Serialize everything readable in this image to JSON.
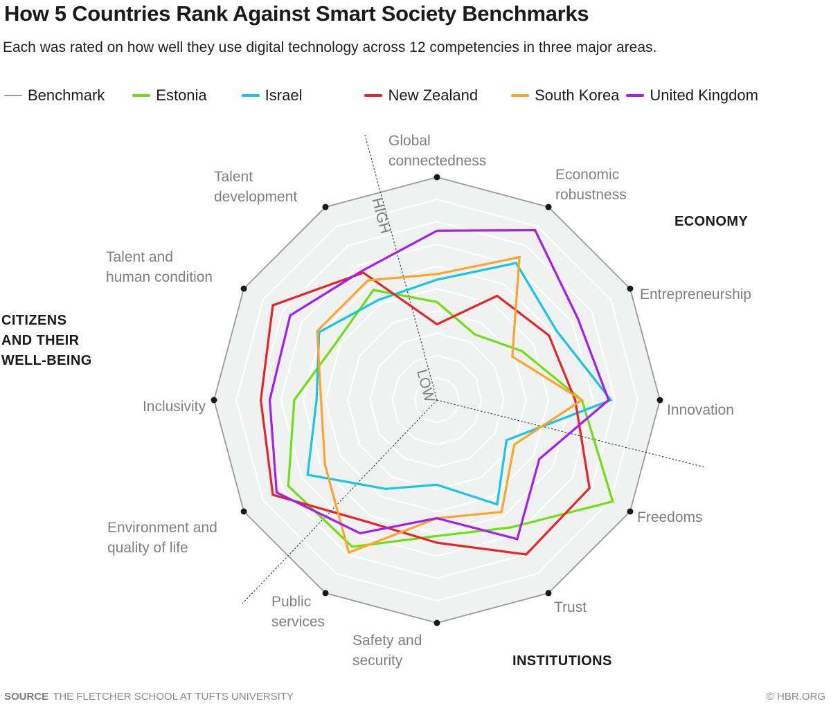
{
  "header": {
    "title": "How 5 Countries Rank Against Smart Society Benchmarks",
    "subtitle": "Each was rated on how well they use digital technology across 12 competencies in three major areas."
  },
  "footer": {
    "source_label": "SOURCE",
    "source_text": "THE FLETCHER SCHOOL AT TUFTS UNIVERSITY",
    "credit": "© HBR.ORG"
  },
  "chart_data": {
    "type": "radar",
    "title": "How 5 Countries Rank Against Smart Society Benchmarks",
    "subtitle": "Each was rated on how well they use digital technology across 12 competencies in three major areas.",
    "scale": {
      "min": 0,
      "max": 10,
      "rings": 10,
      "low_label": "LOW",
      "high_label": "HIGH"
    },
    "axes": [
      [
        "Global",
        "connectedness"
      ],
      [
        "Economic",
        "robustness"
      ],
      [
        "Entrepreneurship"
      ],
      [
        "Innovation"
      ],
      [
        "Freedoms"
      ],
      [
        "Trust"
      ],
      [
        "Safety and",
        "security"
      ],
      [
        "Public",
        "services"
      ],
      [
        "Environment and",
        "quality of life"
      ],
      [
        "Inclusivity"
      ],
      [
        "Talent and",
        "human condition"
      ],
      [
        "Talent",
        "development"
      ]
    ],
    "groups": [
      {
        "label": [
          "ECONOMY"
        ],
        "axes": [
          "Global connectedness",
          "Economic robustness",
          "Entrepreneurship",
          "Innovation"
        ]
      },
      {
        "label": [
          "INSTITUTIONS"
        ],
        "axes": [
          "Freedoms",
          "Trust",
          "Safety and security",
          "Public services"
        ]
      },
      {
        "label": [
          "CITIZENS",
          "AND THEIR",
          "WELL-BEING"
        ],
        "axes": [
          "Environment and quality of life",
          "Inclusivity",
          "Talent and human condition",
          "Talent development"
        ]
      }
    ],
    "legend_position": "top",
    "series": [
      {
        "name": "Benchmark",
        "color": "#9a9a9a",
        "values": [
          10,
          10,
          10,
          10,
          10,
          10,
          10,
          10,
          10,
          10,
          10,
          10
        ]
      },
      {
        "name": "Estonia",
        "color": "#6ee012",
        "values": [
          4.4,
          3.4,
          4.4,
          6.5,
          9.1,
          6.6,
          6.1,
          7.6,
          7.7,
          6.4,
          5.2,
          5.7
        ]
      },
      {
        "name": "Israel",
        "color": "#15c6e6",
        "values": [
          5.4,
          7.1,
          6.2,
          7.8,
          3.6,
          5.4,
          3.8,
          4.6,
          6.7,
          5.4,
          6.1,
          5.2
        ]
      },
      {
        "name": "New Zealand",
        "color": "#e82428",
        "values": [
          3.4,
          5.4,
          5.8,
          6.2,
          7.9,
          8.0,
          6.4,
          6.3,
          8.5,
          7.9,
          8.5,
          6.6
        ]
      },
      {
        "name": "South Korea",
        "color": "#ffa42a",
        "values": [
          5.65,
          7.4,
          3.9,
          6.5,
          4.0,
          5.8,
          5.3,
          7.9,
          5.8,
          5.2,
          6.2,
          6.2
        ]
      },
      {
        "name": "United Kingdom",
        "color": "#a21ff0",
        "values": [
          7.6,
          8.8,
          7.3,
          7.7,
          5.3,
          7.2,
          5.3,
          6.9,
          8.3,
          7.5,
          7.6,
          6.7
        ]
      }
    ]
  }
}
